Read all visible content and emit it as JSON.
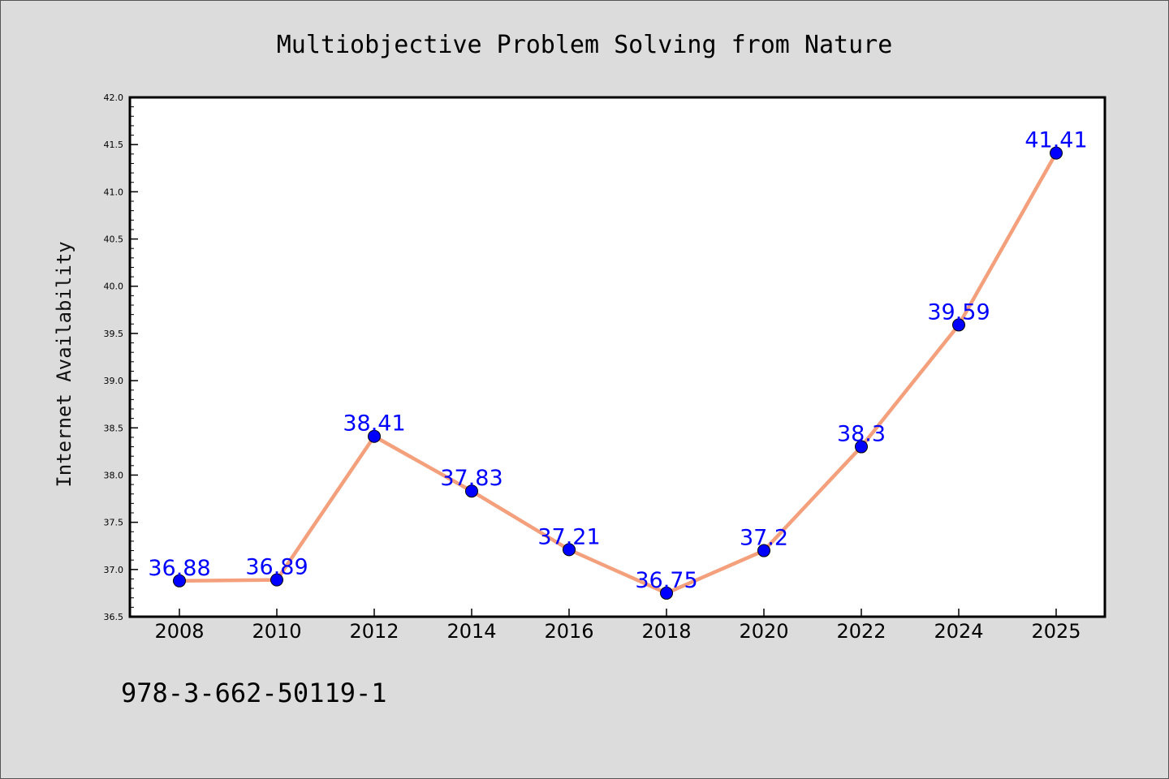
{
  "chart_data": {
    "type": "line",
    "title": "Multiobjective Problem Solving from Nature",
    "xlabel": "",
    "ylabel": "Internet Availability",
    "categories": [
      "2008",
      "2010",
      "2012",
      "2014",
      "2016",
      "2018",
      "2020",
      "2022",
      "2024",
      "2025"
    ],
    "series": [
      {
        "values": [
          36.88,
          36.89,
          38.41,
          37.83,
          37.21,
          36.75,
          37.2,
          38.3,
          39.59,
          41.41
        ],
        "data_labels": [
          "36.88",
          "36.89",
          "38.41",
          "37.83",
          "37.21",
          "36.75",
          "37.2",
          "38.3",
          "39.59",
          "41.41"
        ]
      }
    ],
    "ylim": [
      36.5,
      42.0
    ],
    "yticks": [
      "36.5",
      "37.0",
      "37.5",
      "38.0",
      "38.5",
      "39.0",
      "39.5",
      "40.0",
      "40.5",
      "41.0",
      "41.5",
      "42.0"
    ],
    "grid": false,
    "legend": "none",
    "line_color": "#f4a07c",
    "marker_color": "#0000ff",
    "label_color": "#0000ff",
    "background_color": "#dcdcdc",
    "plot_background_color": "#ffffff"
  },
  "footer_text": "978-3-662-50119-1"
}
